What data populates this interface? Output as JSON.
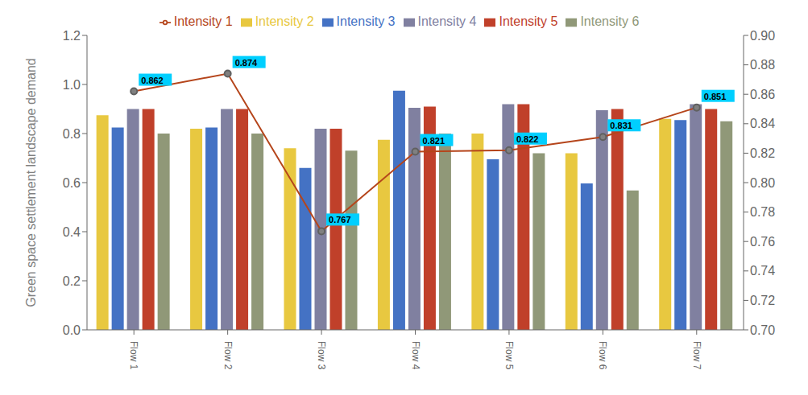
{
  "chart_data": {
    "type": "bar",
    "categories": [
      "Flow 1",
      "Flow 2",
      "Flow 3",
      "Flow 4",
      "Flow 5",
      "Flow 6",
      "Flow 7"
    ],
    "series": [
      {
        "name": "Intensity 2",
        "color": "#E8C840",
        "values": [
          0.875,
          0.82,
          0.74,
          0.775,
          0.8,
          0.72,
          0.86
        ]
      },
      {
        "name": "Intensity 3",
        "color": "#4472C4",
        "values": [
          0.825,
          0.825,
          0.66,
          0.975,
          0.695,
          0.597,
          0.855
        ]
      },
      {
        "name": "Intensity 4",
        "color": "#8080A0",
        "values": [
          0.9,
          0.9,
          0.82,
          0.905,
          0.92,
          0.895,
          0.92
        ]
      },
      {
        "name": "Intensity 5",
        "color": "#C0402A",
        "values": [
          0.9,
          0.9,
          0.82,
          0.91,
          0.92,
          0.9,
          0.9
        ]
      },
      {
        "name": "Intensity 6",
        "color": "#909878",
        "values": [
          0.8,
          0.8,
          0.73,
          0.8,
          0.72,
          0.568,
          0.85
        ]
      },
      {
        "name": "Intensity 1",
        "type": "line",
        "axis": "y2",
        "color": "#B5451B",
        "marker": "o",
        "data_labels": true,
        "values": [
          0.862,
          0.874,
          0.767,
          0.821,
          0.822,
          0.831,
          0.851
        ]
      }
    ],
    "ylabel": "Green space settlement landscape demand",
    "ylim": [
      0,
      1.2
    ],
    "yticks": [
      {
        "value": 0,
        "label": "0.0"
      },
      0.2,
      0.4,
      0.6,
      0.8,
      {
        "value": 1.0,
        "label": "1.0"
      },
      1.2
    ],
    "y2lim": [
      0.7,
      0.9
    ],
    "y2ticks": [
      {
        "value": 0.7,
        "label": "0.70"
      },
      0.72,
      0.74,
      0.76,
      0.78,
      {
        "value": 0.8,
        "label": "0.80"
      },
      0.82,
      0.84,
      0.86,
      0.88,
      {
        "value": 0.9,
        "label": "0.90"
      }
    ],
    "legend": "top",
    "grid": false
  }
}
